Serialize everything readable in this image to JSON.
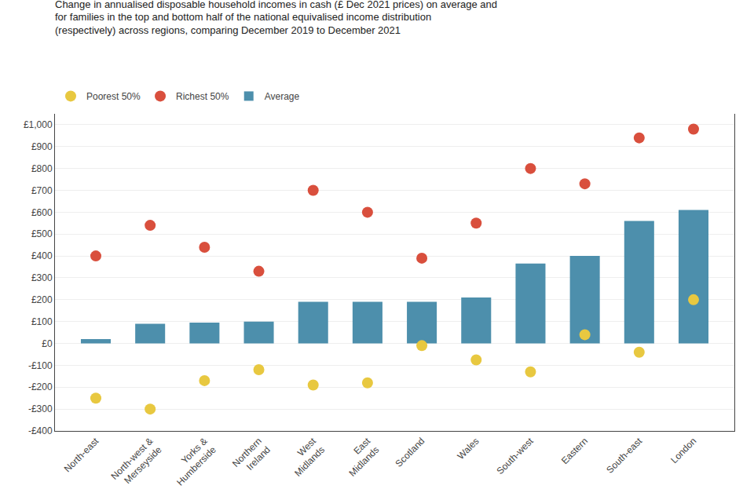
{
  "chart_data": {
    "type": "bar",
    "title": "Change in annualised disposable household incomes in cash (£ Dec 2021 prices) on average and\nfor families in the top and bottom half of the national equivalised income distribution\n(respectively) across regions, comparing December 2019 to December 2021",
    "categories": [
      "North-east",
      "North-west &\nMerseyside",
      "Yorks &\nHumberside",
      "Northern\nIreland",
      "West\nMidlands",
      "East\nMidlands",
      "Scotland",
      "Wales",
      "South-west",
      "Eastern",
      "South-east",
      "London"
    ],
    "series": [
      {
        "name": "Poorest 50%",
        "type": "scatter",
        "marker": "circle",
        "color": "#e8c840",
        "values": [
          -250,
          -300,
          -170,
          -120,
          -190,
          -180,
          -10,
          -75,
          -130,
          40,
          -40,
          200
        ]
      },
      {
        "name": "Richest 50%",
        "type": "scatter",
        "marker": "circle",
        "color": "#d94f3d",
        "values": [
          400,
          540,
          440,
          330,
          700,
          600,
          390,
          550,
          800,
          730,
          940,
          980
        ]
      },
      {
        "name": "Average",
        "type": "bar",
        "color": "#4d8fac",
        "values": [
          20,
          90,
          95,
          100,
          190,
          190,
          190,
          210,
          365,
          400,
          560,
          610
        ]
      }
    ],
    "ylim": [
      -400,
      1050
    ],
    "yticks": [
      {
        "value": -400,
        "label": "-£400"
      },
      {
        "value": -300,
        "label": "-£300"
      },
      {
        "value": -200,
        "label": "-£200"
      },
      {
        "value": -100,
        "label": "-£100"
      },
      {
        "value": 0,
        "label": "£0"
      },
      {
        "value": 100,
        "label": "£100"
      },
      {
        "value": 200,
        "label": "£200"
      },
      {
        "value": 300,
        "label": "£300"
      },
      {
        "value": 400,
        "label": "£400"
      },
      {
        "value": 500,
        "label": "£500"
      },
      {
        "value": 600,
        "label": "£600"
      },
      {
        "value": 700,
        "label": "£700"
      },
      {
        "value": 800,
        "label": "£800"
      },
      {
        "value": 900,
        "label": "£900"
      },
      {
        "value": 1000,
        "label": "£1,000"
      }
    ],
    "grid": true,
    "legend": "upper left"
  }
}
